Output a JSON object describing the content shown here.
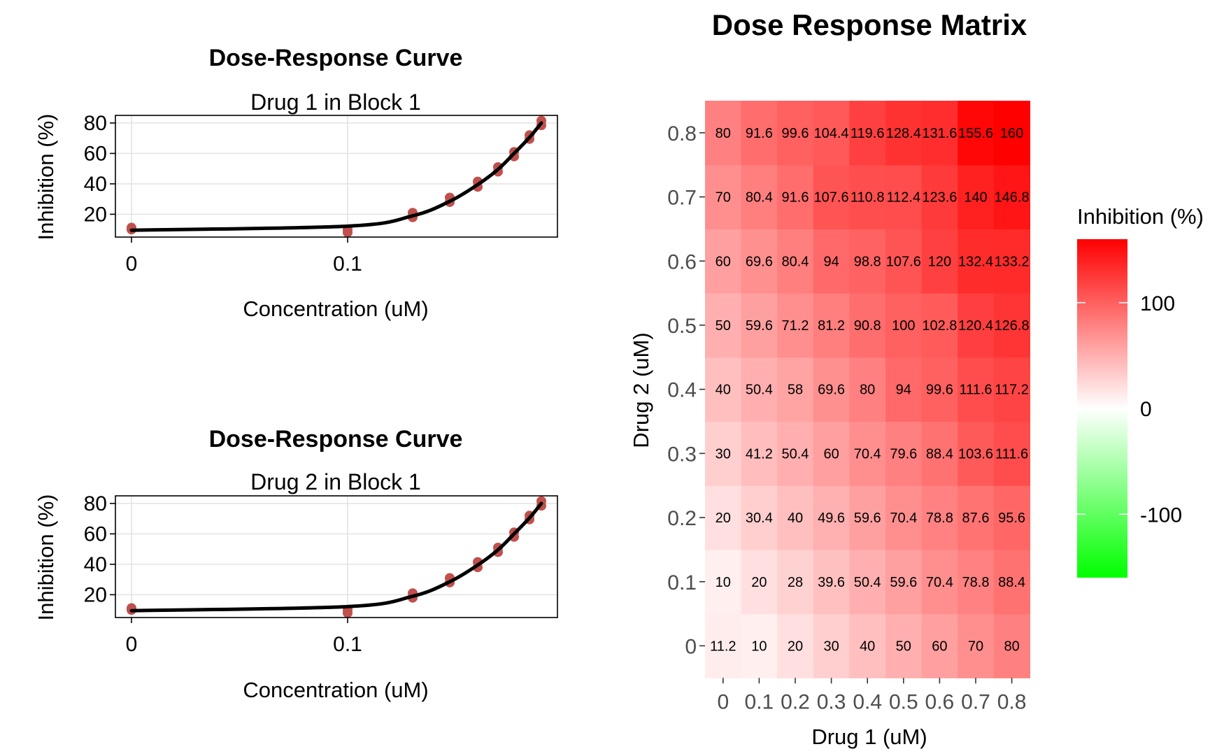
{
  "chart_data": [
    {
      "type": "line",
      "title": "Dose-Response Curve",
      "subtitle": "Drug 1 in Block 1",
      "xlabel": "Concentration (uM)",
      "ylabel": "Inhibition (%)",
      "x_ticks": [
        "0",
        "0.1"
      ],
      "y_ticks": [
        "20",
        "40",
        "60",
        "80"
      ],
      "ylim": [
        5,
        85
      ],
      "grid": true,
      "series": [
        {
          "kind": "points",
          "color": "#c0504d",
          "points": [
            {
              "x": "0",
              "y": 11.2
            },
            {
              "x": "0",
              "y": 10
            },
            {
              "x": "0.1",
              "y": 10
            },
            {
              "x": "0.1",
              "y": 8
            },
            {
              "x": "0.2",
              "y": 18
            },
            {
              "x": "0.2",
              "y": 21
            },
            {
              "x": "0.3",
              "y": 28
            },
            {
              "x": "0.3",
              "y": 31
            },
            {
              "x": "0.4",
              "y": 38
            },
            {
              "x": "0.4",
              "y": 41.5
            },
            {
              "x": "0.5",
              "y": 48
            },
            {
              "x": "0.5",
              "y": 51
            },
            {
              "x": "0.6",
              "y": 58
            },
            {
              "x": "0.6",
              "y": 61
            },
            {
              "x": "0.7",
              "y": 69.5
            },
            {
              "x": "0.7",
              "y": 72
            },
            {
              "x": "0.8",
              "y": 78.5
            },
            {
              "x": "0.8",
              "y": 81.5
            }
          ]
        },
        {
          "kind": "fit",
          "color": "#000000",
          "points": [
            {
              "x": "0",
              "y": 9.5
            },
            {
              "x": "0.1",
              "y": 12.2
            },
            {
              "x": "0.2",
              "y": 19
            },
            {
              "x": "0.3",
              "y": 28.5
            },
            {
              "x": "0.4",
              "y": 39.5
            },
            {
              "x": "0.5",
              "y": 49.5
            },
            {
              "x": "0.6",
              "y": 60
            },
            {
              "x": "0.7",
              "y": 70.5
            },
            {
              "x": "0.8",
              "y": 80
            }
          ]
        }
      ]
    },
    {
      "type": "line",
      "title": "Dose-Response Curve",
      "subtitle": "Drug 2 in Block 1",
      "xlabel": "Concentration (uM)",
      "ylabel": "Inhibition (%)",
      "x_ticks": [
        "0",
        "0.1"
      ],
      "y_ticks": [
        "20",
        "40",
        "60",
        "80"
      ],
      "ylim": [
        5,
        85
      ],
      "grid": true,
      "series": [
        {
          "kind": "points",
          "color": "#c0504d",
          "points": [
            {
              "x": "0",
              "y": 11.2
            },
            {
              "x": "0",
              "y": 10
            },
            {
              "x": "0.1",
              "y": 10
            },
            {
              "x": "0.1",
              "y": 8
            },
            {
              "x": "0.2",
              "y": 18
            },
            {
              "x": "0.2",
              "y": 21
            },
            {
              "x": "0.3",
              "y": 28
            },
            {
              "x": "0.3",
              "y": 31
            },
            {
              "x": "0.4",
              "y": 38
            },
            {
              "x": "0.4",
              "y": 41.5
            },
            {
              "x": "0.5",
              "y": 48
            },
            {
              "x": "0.5",
              "y": 51
            },
            {
              "x": "0.6",
              "y": 58
            },
            {
              "x": "0.6",
              "y": 61
            },
            {
              "x": "0.7",
              "y": 69.5
            },
            {
              "x": "0.7",
              "y": 72
            },
            {
              "x": "0.8",
              "y": 78.5
            },
            {
              "x": "0.8",
              "y": 81.5
            }
          ]
        },
        {
          "kind": "fit",
          "color": "#000000",
          "points": [
            {
              "x": "0",
              "y": 9.5
            },
            {
              "x": "0.1",
              "y": 12.2
            },
            {
              "x": "0.2",
              "y": 19
            },
            {
              "x": "0.3",
              "y": 28.5
            },
            {
              "x": "0.4",
              "y": 39.5
            },
            {
              "x": "0.5",
              "y": 49.5
            },
            {
              "x": "0.6",
              "y": 60
            },
            {
              "x": "0.7",
              "y": 70.5
            },
            {
              "x": "0.8",
              "y": 80
            }
          ]
        }
      ]
    },
    {
      "type": "heatmap",
      "title": "Dose Response Matrix",
      "xlabel": "Drug 1 (uM)",
      "ylabel": "Drug 2 (uM)",
      "x_categories": [
        "0",
        "0.1",
        "0.2",
        "0.3",
        "0.4",
        "0.5",
        "0.6",
        "0.7",
        "0.8"
      ],
      "y_categories": [
        "0",
        "0.1",
        "0.2",
        "0.3",
        "0.4",
        "0.5",
        "0.6",
        "0.7",
        "0.8"
      ],
      "values": [
        [
          "11.2",
          "10",
          "20",
          "30",
          "40",
          "50",
          "60",
          "70",
          "80"
        ],
        [
          "10",
          "20",
          "28",
          "39.6",
          "50.4",
          "59.6",
          "70.4",
          "78.8",
          "88.4"
        ],
        [
          "20",
          "30.4",
          "40",
          "49.6",
          "59.6",
          "70.4",
          "78.8",
          "87.6",
          "95.6"
        ],
        [
          "30",
          "41.2",
          "50.4",
          "60",
          "70.4",
          "79.6",
          "88.4",
          "103.6",
          "111.6"
        ],
        [
          "40",
          "50.4",
          "58",
          "69.6",
          "80",
          "94",
          "99.6",
          "111.6",
          "117.2"
        ],
        [
          "50",
          "59.6",
          "71.2",
          "81.2",
          "90.8",
          "100",
          "102.8",
          "120.4",
          "126.8"
        ],
        [
          "60",
          "69.6",
          "80.4",
          "94",
          "98.8",
          "107.6",
          "120",
          "132.4",
          "133.2"
        ],
        [
          "70",
          "80.4",
          "91.6",
          "107.6",
          "110.8",
          "112.4",
          "123.6",
          "140",
          "146.8"
        ],
        [
          "80",
          "91.6",
          "99.6",
          "104.4",
          "119.6",
          "128.4",
          "131.6",
          "155.6",
          "160"
        ]
      ],
      "legend": {
        "title": "Inhibition (%)",
        "ticks": [
          "100",
          "0",
          "-100"
        ],
        "range": [
          -160,
          160
        ],
        "colors": {
          "high": "#ff0000",
          "mid": "#ffffff",
          "low": "#00ff00"
        },
        "position": "right"
      }
    }
  ]
}
